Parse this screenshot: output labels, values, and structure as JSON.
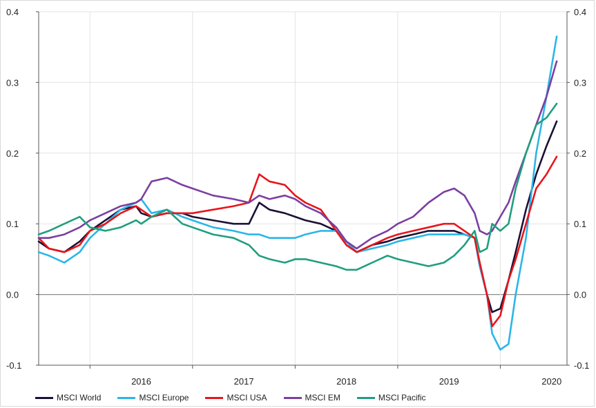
{
  "chart_data": {
    "type": "line",
    "title": "",
    "xlabel": "",
    "ylabel": "",
    "ylim": [
      -0.1,
      0.4
    ],
    "y_ticks": [
      "-0.1",
      "0.0",
      "0.1",
      "0.2",
      "0.3",
      "0.4"
    ],
    "y_tick_values": [
      -0.1,
      0.0,
      0.1,
      0.2,
      0.3,
      0.4
    ],
    "x_categories": [
      "2016",
      "2017",
      "2018",
      "2019",
      "2020"
    ],
    "xlim": [
      2015.5,
      2020.65
    ],
    "grid": true,
    "dual_y_axis": true,
    "legend_position": "bottom",
    "x": [
      2015.5,
      2015.6,
      2015.75,
      2015.9,
      2016.0,
      2016.15,
      2016.3,
      2016.45,
      2016.5,
      2016.6,
      2016.75,
      2016.9,
      2017.0,
      2017.2,
      2017.4,
      2017.55,
      2017.65,
      2017.75,
      2017.9,
      2018.0,
      2018.1,
      2018.25,
      2018.4,
      2018.5,
      2018.6,
      2018.75,
      2018.9,
      2019.0,
      2019.15,
      2019.3,
      2019.45,
      2019.55,
      2019.65,
      2019.75,
      2019.8,
      2019.87,
      2019.92,
      2020.0,
      2020.08,
      2020.15,
      2020.25,
      2020.35,
      2020.45,
      2020.55
    ],
    "series": [
      {
        "name": "MSCI World",
        "color": "#1b1035",
        "values": [
          0.075,
          0.065,
          0.06,
          0.075,
          0.09,
          0.105,
          0.12,
          0.125,
          0.115,
          0.11,
          0.115,
          0.115,
          0.11,
          0.105,
          0.1,
          0.1,
          0.13,
          0.12,
          0.115,
          0.11,
          0.105,
          0.1,
          0.09,
          0.07,
          0.06,
          0.07,
          0.075,
          0.08,
          0.085,
          0.09,
          0.09,
          0.09,
          0.085,
          0.08,
          0.04,
          0.0,
          -0.025,
          -0.02,
          0.02,
          0.06,
          0.12,
          0.17,
          0.21,
          0.245
        ]
      },
      {
        "name": "MSCI Europe",
        "color": "#29b6e8",
        "values": [
          0.06,
          0.055,
          0.045,
          0.06,
          0.08,
          0.1,
          0.12,
          0.13,
          0.135,
          0.115,
          0.12,
          0.11,
          0.105,
          0.095,
          0.09,
          0.085,
          0.085,
          0.08,
          0.08,
          0.08,
          0.085,
          0.09,
          0.09,
          0.075,
          0.06,
          0.065,
          0.07,
          0.075,
          0.08,
          0.085,
          0.085,
          0.085,
          0.085,
          0.08,
          0.04,
          0.0,
          -0.055,
          -0.078,
          -0.07,
          0.0,
          0.08,
          0.2,
          0.28,
          0.365
        ]
      },
      {
        "name": "MSCI USA",
        "color": "#e8141b",
        "values": [
          0.08,
          0.065,
          0.06,
          0.07,
          0.09,
          0.1,
          0.115,
          0.125,
          0.12,
          0.11,
          0.115,
          0.115,
          0.115,
          0.12,
          0.125,
          0.13,
          0.17,
          0.16,
          0.155,
          0.14,
          0.13,
          0.12,
          0.09,
          0.07,
          0.06,
          0.07,
          0.08,
          0.085,
          0.09,
          0.095,
          0.1,
          0.1,
          0.09,
          0.08,
          0.045,
          0.0,
          -0.045,
          -0.03,
          0.02,
          0.05,
          0.1,
          0.15,
          0.17,
          0.195
        ]
      },
      {
        "name": "MSCI EM",
        "color": "#7b3fa0",
        "values": [
          0.08,
          0.08,
          0.085,
          0.095,
          0.105,
          0.115,
          0.125,
          0.13,
          0.135,
          0.16,
          0.165,
          0.155,
          0.15,
          0.14,
          0.135,
          0.13,
          0.14,
          0.135,
          0.14,
          0.135,
          0.125,
          0.115,
          0.095,
          0.075,
          0.065,
          0.08,
          0.09,
          0.1,
          0.11,
          0.13,
          0.145,
          0.15,
          0.14,
          0.115,
          0.09,
          0.085,
          0.09,
          0.11,
          0.13,
          0.16,
          0.2,
          0.24,
          0.28,
          0.33
        ]
      },
      {
        "name": "MSCI Pacific",
        "color": "#1f9e7e",
        "values": [
          0.085,
          0.09,
          0.1,
          0.11,
          0.095,
          0.09,
          0.095,
          0.105,
          0.1,
          0.11,
          0.12,
          0.1,
          0.095,
          0.085,
          0.08,
          0.07,
          0.055,
          0.05,
          0.045,
          0.05,
          0.05,
          0.045,
          0.04,
          0.035,
          0.035,
          0.045,
          0.055,
          0.05,
          0.045,
          0.04,
          0.045,
          0.055,
          0.07,
          0.09,
          0.06,
          0.065,
          0.1,
          0.09,
          0.1,
          0.15,
          0.2,
          0.24,
          0.25,
          0.27
        ]
      }
    ]
  }
}
